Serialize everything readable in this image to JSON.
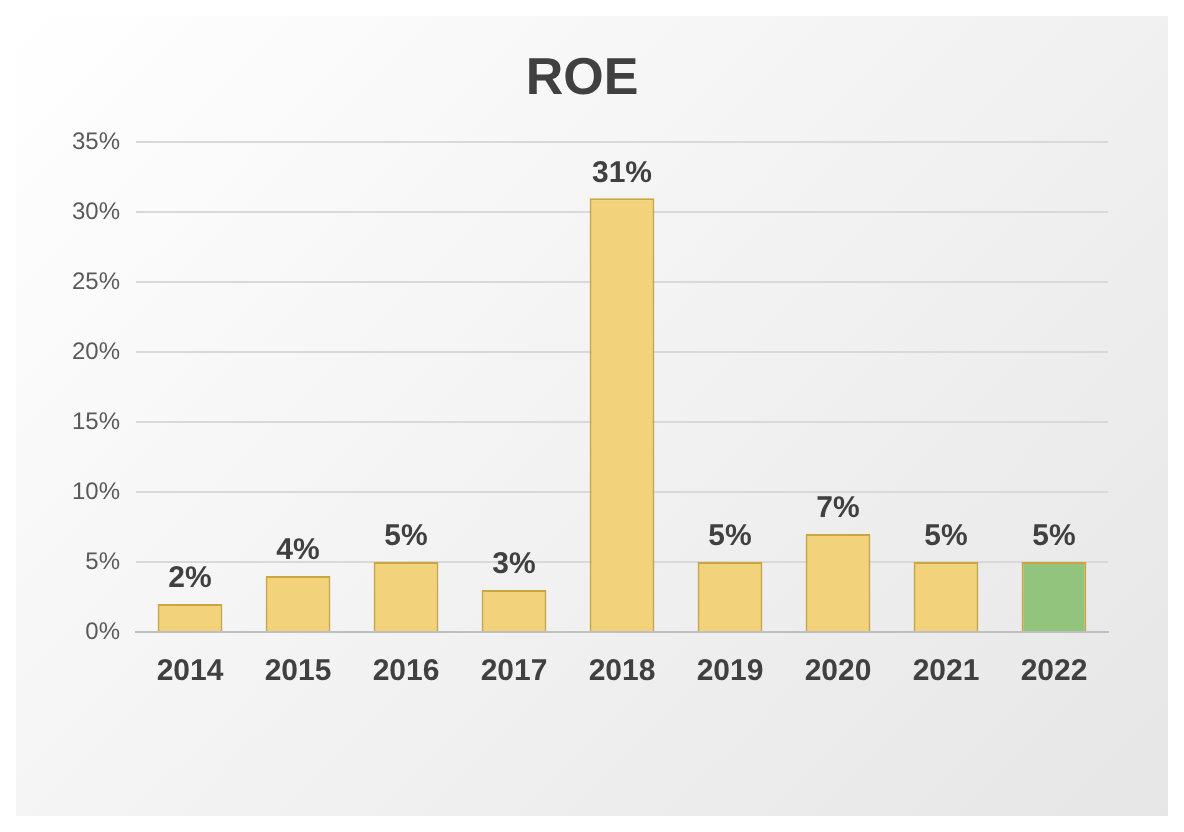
{
  "chart_data": {
    "type": "bar",
    "title": "ROE",
    "categories": [
      "2014",
      "2015",
      "2016",
      "2017",
      "2018",
      "2019",
      "2020",
      "2021",
      "2022"
    ],
    "values": [
      2,
      4,
      5,
      3,
      31,
      5,
      7,
      5,
      5
    ],
    "value_labels": [
      "2%",
      "4%",
      "5%",
      "3%",
      "31%",
      "5%",
      "7%",
      "5%",
      "5%"
    ],
    "colors": [
      "#f2d27a",
      "#f2d27a",
      "#f2d27a",
      "#f2d27a",
      "#f2d27a",
      "#f2d27a",
      "#f2d27a",
      "#f2d27a",
      "#93c47d"
    ],
    "ylim": [
      0,
      35
    ],
    "yticks": [
      {
        "value": 0,
        "label": "0%"
      },
      {
        "value": 5,
        "label": "5%"
      },
      {
        "value": 10,
        "label": "10%"
      },
      {
        "value": 15,
        "label": "15%"
      },
      {
        "value": 20,
        "label": "20%"
      },
      {
        "value": 25,
        "label": "25%"
      },
      {
        "value": 30,
        "label": "30%"
      },
      {
        "value": 35,
        "label": "35%"
      }
    ],
    "grid": "y",
    "legend": false
  }
}
